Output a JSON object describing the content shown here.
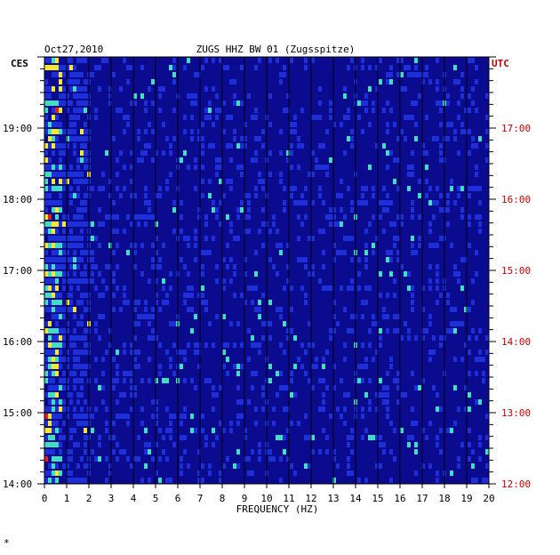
{
  "chart_data": {
    "type": "heatmap",
    "date": "Oct27,2010",
    "title": "ZUGS HHZ BW 01 (Zugsspitze)",
    "left_zone_label": "CES",
    "right_zone_label": "UTC",
    "xlabel": "FREQUENCY (HZ)",
    "xlim": [
      0,
      20
    ],
    "x_ticks": [
      "0",
      "1",
      "2",
      "3",
      "4",
      "5",
      "6",
      "7",
      "8",
      "9",
      "10",
      "11",
      "12",
      "13",
      "14",
      "15",
      "16",
      "17",
      "18",
      "19",
      "20"
    ],
    "left_time_ticks": [
      "19:00",
      "18:00",
      "17:00",
      "16:00",
      "15:00",
      "14:00"
    ],
    "right_time_ticks": [
      "17:00",
      "16:00",
      "15:00",
      "14:00",
      "13:00",
      "12:00"
    ],
    "ylim_local_hours": [
      14.0,
      19.95
    ],
    "colors": {
      "background": "#0b0b8f",
      "low": "#1c2fd8",
      "mid": "#22a8f0",
      "high": "#f5e82a",
      "peak": "#e02020",
      "right_axis": "#cc0000"
    },
    "footer_mark": "*"
  }
}
